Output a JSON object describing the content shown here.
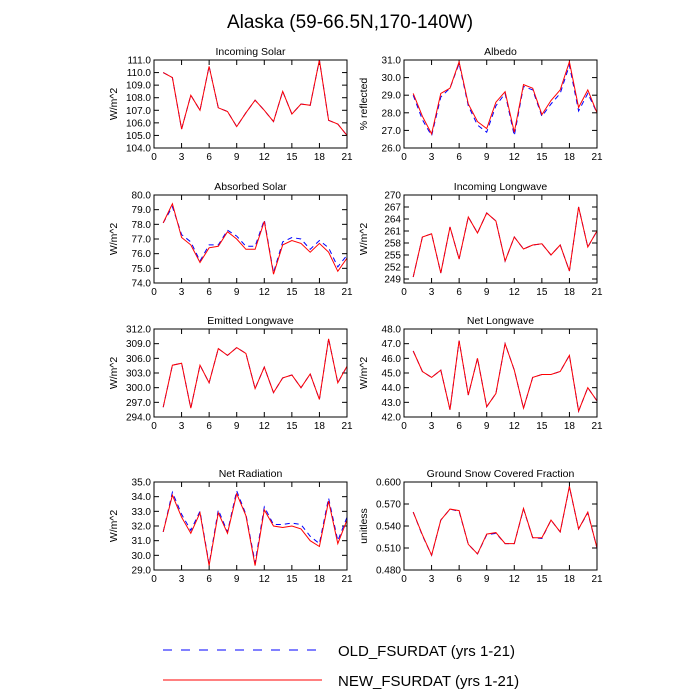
{
  "title": "Alaska (59-66.5N,170-140W)",
  "legend": [
    {
      "label": "OLD_FSURDAT (yrs 1-21)",
      "color": "#0000ff",
      "dashed": true
    },
    {
      "label": "NEW_FSURDAT (yrs 1-21)",
      "color": "#ff0000",
      "dashed": false
    }
  ],
  "chart_data": [
    {
      "type": "line",
      "title": "Incoming Solar",
      "ylabel": "W/m^2",
      "xlim": [
        0,
        21
      ],
      "ylim": [
        104.0,
        111.0
      ],
      "xticks": [
        0,
        3,
        6,
        9,
        12,
        15,
        18,
        21
      ],
      "yticks": [
        104.0,
        105.0,
        106.0,
        107.0,
        108.0,
        109.0,
        110.0,
        111.0
      ],
      "ytick_labels": [
        "104.0",
        "105.0",
        "106.0",
        "107.0",
        "108.0",
        "109.0",
        "110.0",
        "111.0"
      ],
      "x": [
        1,
        2,
        3,
        4,
        5,
        6,
        7,
        8,
        9,
        10,
        11,
        12,
        13,
        14,
        15,
        16,
        17,
        18,
        19,
        20,
        21
      ],
      "series": [
        {
          "name": "OLD_FSURDAT (yrs 1-21)",
          "values": [
            110.0,
            109.6,
            105.5,
            108.2,
            107.0,
            110.5,
            107.2,
            106.9,
            105.7,
            106.8,
            107.8,
            107.0,
            106.1,
            108.5,
            106.7,
            107.5,
            107.4,
            111.0,
            106.2,
            105.9,
            105.0
          ]
        },
        {
          "name": "NEW_FSURDAT (yrs 1-21)",
          "values": [
            110.0,
            109.6,
            105.5,
            108.2,
            107.0,
            110.5,
            107.2,
            106.9,
            105.7,
            106.8,
            107.8,
            107.0,
            106.1,
            108.5,
            106.7,
            107.5,
            107.4,
            111.0,
            106.2,
            105.9,
            105.0
          ]
        }
      ]
    },
    {
      "type": "line",
      "title": "Albedo",
      "ylabel": "% reflected",
      "xlim": [
        0,
        21
      ],
      "ylim": [
        26.0,
        31.0
      ],
      "xticks": [
        0,
        3,
        6,
        9,
        12,
        15,
        18,
        21
      ],
      "yticks": [
        26.0,
        27.0,
        28.0,
        29.0,
        30.0,
        31.0
      ],
      "ytick_labels": [
        "26.0",
        "27.0",
        "28.0",
        "29.0",
        "30.0",
        "31.0"
      ],
      "x": [
        1,
        2,
        3,
        4,
        5,
        6,
        7,
        8,
        9,
        10,
        11,
        12,
        13,
        14,
        15,
        16,
        17,
        18,
        19,
        20,
        21
      ],
      "series": [
        {
          "name": "OLD_FSURDAT (yrs 1-21)",
          "values": [
            29.0,
            27.6,
            26.7,
            28.9,
            29.4,
            30.8,
            28.4,
            27.3,
            26.9,
            28.4,
            29.1,
            26.7,
            29.5,
            29.3,
            27.8,
            28.5,
            29.1,
            30.7,
            28.1,
            29.1,
            28.0
          ]
        },
        {
          "name": "NEW_FSURDAT (yrs 1-21)",
          "values": [
            29.1,
            27.8,
            26.8,
            29.1,
            29.4,
            30.9,
            28.5,
            27.5,
            27.1,
            28.6,
            29.2,
            26.9,
            29.6,
            29.4,
            27.9,
            28.7,
            29.3,
            30.9,
            28.3,
            29.3,
            28.0
          ]
        }
      ]
    },
    {
      "type": "line",
      "title": "Absorbed Solar",
      "ylabel": "W/m^2",
      "xlim": [
        0,
        21
      ],
      "ylim": [
        74.0,
        80.0
      ],
      "xticks": [
        0,
        3,
        6,
        9,
        12,
        15,
        18,
        21
      ],
      "yticks": [
        74.0,
        75.0,
        76.0,
        77.0,
        78.0,
        79.0,
        80.0
      ],
      "ytick_labels": [
        "74.0",
        "75.0",
        "76.0",
        "77.0",
        "78.0",
        "79.0",
        "80.0"
      ],
      "x": [
        1,
        2,
        3,
        4,
        5,
        6,
        7,
        8,
        9,
        10,
        11,
        12,
        13,
        14,
        15,
        16,
        17,
        18,
        19,
        20,
        21
      ],
      "series": [
        {
          "name": "OLD_FSURDAT (yrs 1-21)",
          "values": [
            78.1,
            79.2,
            77.3,
            76.8,
            75.5,
            76.6,
            76.6,
            77.6,
            77.2,
            76.5,
            76.5,
            78.3,
            74.7,
            76.8,
            77.1,
            77.0,
            76.3,
            76.9,
            76.4,
            75.1,
            75.9
          ]
        },
        {
          "name": "NEW_FSURDAT (yrs 1-21)",
          "values": [
            78.1,
            79.4,
            77.1,
            76.6,
            75.4,
            76.4,
            76.5,
            77.5,
            77.0,
            76.3,
            76.3,
            78.2,
            74.6,
            76.6,
            76.9,
            76.7,
            76.1,
            76.7,
            76.1,
            74.8,
            75.7
          ]
        }
      ]
    },
    {
      "type": "line",
      "title": "Incoming Longwave",
      "ylabel": "W/m^2",
      "xlim": [
        0,
        21
      ],
      "ylim": [
        248.0,
        270.0
      ],
      "xticks": [
        0,
        3,
        6,
        9,
        12,
        15,
        18,
        21
      ],
      "yticks": [
        249.0,
        252.0,
        255.0,
        258.0,
        261.0,
        264.0,
        267.0,
        270.0
      ],
      "ytick_labels": [
        "249",
        "252",
        "255",
        "258",
        "261",
        "264",
        "267",
        "270"
      ],
      "x": [
        1,
        2,
        3,
        4,
        5,
        6,
        7,
        8,
        9,
        10,
        11,
        12,
        13,
        14,
        15,
        16,
        17,
        18,
        19,
        20,
        21
      ],
      "series": [
        {
          "name": "OLD_FSURDAT (yrs 1-21)",
          "values": [
            249.5,
            259.5,
            260.3,
            250.5,
            262.0,
            254.0,
            264.5,
            260.5,
            265.5,
            263.5,
            253.5,
            259.5,
            256.5,
            257.5,
            257.8,
            255.0,
            257.5,
            251.0,
            267.0,
            257.0,
            261.0
          ]
        },
        {
          "name": "NEW_FSURDAT (yrs 1-21)",
          "values": [
            249.5,
            259.5,
            260.3,
            250.5,
            262.0,
            254.0,
            264.5,
            260.5,
            265.5,
            263.5,
            253.5,
            259.5,
            256.5,
            257.5,
            257.8,
            255.0,
            257.5,
            251.0,
            267.0,
            257.0,
            261.0
          ]
        }
      ]
    },
    {
      "type": "line",
      "title": "Emitted Longwave",
      "ylabel": "W/m^2",
      "xlim": [
        0,
        21
      ],
      "ylim": [
        294.0,
        312.0
      ],
      "xticks": [
        0,
        3,
        6,
        9,
        12,
        15,
        18,
        21
      ],
      "yticks": [
        294.0,
        297.0,
        300.0,
        303.0,
        306.0,
        309.0,
        312.0
      ],
      "ytick_labels": [
        "294.0",
        "297.0",
        "300.0",
        "303.0",
        "306.0",
        "309.0",
        "312.0"
      ],
      "x": [
        1,
        2,
        3,
        4,
        5,
        6,
        7,
        8,
        9,
        10,
        11,
        12,
        13,
        14,
        15,
        16,
        17,
        18,
        19,
        20,
        21
      ],
      "series": [
        {
          "name": "OLD_FSURDAT (yrs 1-21)",
          "values": [
            296.0,
            304.6,
            305.0,
            295.8,
            304.6,
            301.0,
            308.0,
            306.6,
            308.2,
            307.0,
            299.8,
            304.2,
            299.0,
            302.0,
            302.6,
            300.0,
            302.8,
            297.6,
            310.0,
            301.0,
            304.4
          ]
        },
        {
          "name": "NEW_FSURDAT (yrs 1-21)",
          "values": [
            296.0,
            304.6,
            305.0,
            295.8,
            304.6,
            301.0,
            308.0,
            306.6,
            308.2,
            307.0,
            299.8,
            304.2,
            299.0,
            302.0,
            302.6,
            300.0,
            302.8,
            297.6,
            310.0,
            301.0,
            304.4
          ]
        }
      ]
    },
    {
      "type": "line",
      "title": "Net Longwave",
      "ylabel": "W/m^2",
      "xlim": [
        0,
        21
      ],
      "ylim": [
        42.0,
        48.0
      ],
      "xticks": [
        0,
        3,
        6,
        9,
        12,
        15,
        18,
        21
      ],
      "yticks": [
        42.0,
        43.0,
        44.0,
        45.0,
        46.0,
        47.0,
        48.0
      ],
      "ytick_labels": [
        "42.0",
        "43.0",
        "44.0",
        "45.0",
        "46.0",
        "47.0",
        "48.0"
      ],
      "x": [
        1,
        2,
        3,
        4,
        5,
        6,
        7,
        8,
        9,
        10,
        11,
        12,
        13,
        14,
        15,
        16,
        17,
        18,
        19,
        20,
        21
      ],
      "series": [
        {
          "name": "OLD_FSURDAT (yrs 1-21)",
          "values": [
            46.5,
            45.1,
            44.7,
            45.2,
            42.5,
            47.2,
            43.5,
            46.0,
            42.7,
            43.6,
            47.0,
            45.2,
            42.6,
            44.7,
            44.9,
            44.9,
            45.1,
            46.2,
            42.4,
            44.0,
            43.1
          ]
        },
        {
          "name": "NEW_FSURDAT (yrs 1-21)",
          "values": [
            46.5,
            45.1,
            44.7,
            45.2,
            42.5,
            47.2,
            43.5,
            46.0,
            42.7,
            43.6,
            47.0,
            45.2,
            42.6,
            44.7,
            44.9,
            44.9,
            45.1,
            46.2,
            42.4,
            44.0,
            43.1
          ]
        }
      ]
    },
    {
      "type": "line",
      "title": "Net Radiation",
      "ylabel": "W/m^2",
      "xlim": [
        0,
        21
      ],
      "ylim": [
        29.0,
        35.0
      ],
      "xticks": [
        0,
        3,
        6,
        9,
        12,
        15,
        18,
        21
      ],
      "yticks": [
        29.0,
        30.0,
        31.0,
        32.0,
        33.0,
        34.0,
        35.0
      ],
      "ytick_labels": [
        "29.0",
        "30.0",
        "31.0",
        "32.0",
        "33.0",
        "34.0",
        "35.0"
      ],
      "x": [
        1,
        2,
        3,
        4,
        5,
        6,
        7,
        8,
        9,
        10,
        11,
        12,
        13,
        14,
        15,
        16,
        17,
        18,
        19,
        20,
        21
      ],
      "series": [
        {
          "name": "OLD_FSURDAT (yrs 1-21)",
          "values": [
            31.6,
            34.3,
            32.8,
            31.7,
            33.0,
            29.4,
            33.1,
            31.6,
            34.4,
            32.8,
            29.5,
            33.3,
            32.1,
            32.1,
            32.2,
            32.1,
            31.3,
            30.8,
            33.9,
            31.0,
            32.6
          ]
        },
        {
          "name": "NEW_FSURDAT (yrs 1-21)",
          "values": [
            31.6,
            34.1,
            32.6,
            31.5,
            32.9,
            29.3,
            32.9,
            31.5,
            34.2,
            32.7,
            29.3,
            33.1,
            32.0,
            31.9,
            32.0,
            31.8,
            31.0,
            30.6,
            33.7,
            30.8,
            32.4
          ]
        }
      ]
    },
    {
      "type": "line",
      "title": "Ground Snow Covered Fraction",
      "ylabel": "unitless",
      "xlim": [
        0,
        21
      ],
      "ylim": [
        0.48,
        0.6
      ],
      "xticks": [
        0,
        3,
        6,
        9,
        12,
        15,
        18,
        21
      ],
      "yticks": [
        0.48,
        0.51,
        0.54,
        0.57,
        0.6
      ],
      "ytick_labels": [
        "0.480",
        "0.510",
        "0.540",
        "0.570",
        "0.600"
      ],
      "x": [
        1,
        2,
        3,
        4,
        5,
        6,
        7,
        8,
        9,
        10,
        11,
        12,
        13,
        14,
        15,
        16,
        17,
        18,
        19,
        20,
        21
      ],
      "series": [
        {
          "name": "OLD_FSURDAT (yrs 1-21)",
          "values": [
            0.559,
            0.527,
            0.5,
            0.548,
            0.563,
            0.56,
            0.515,
            0.502,
            0.528,
            0.53,
            0.516,
            0.516,
            0.563,
            0.524,
            0.523,
            0.548,
            0.532,
            0.593,
            0.536,
            0.558,
            0.51
          ]
        },
        {
          "name": "NEW_FSURDAT (yrs 1-21)",
          "values": [
            0.559,
            0.528,
            0.5,
            0.548,
            0.563,
            0.561,
            0.515,
            0.502,
            0.529,
            0.531,
            0.516,
            0.516,
            0.564,
            0.524,
            0.524,
            0.548,
            0.532,
            0.594,
            0.536,
            0.559,
            0.51
          ]
        }
      ]
    }
  ]
}
